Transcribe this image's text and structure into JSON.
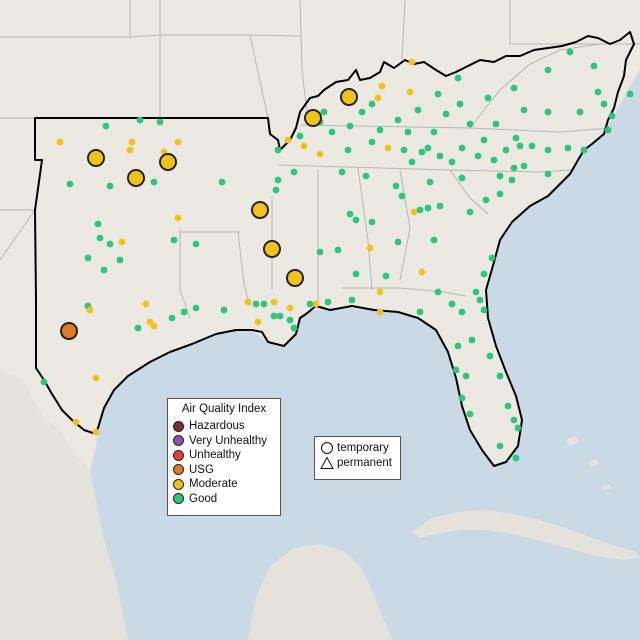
{
  "map": {
    "background_water": "#c9d9e6",
    "background_land": "#ece9e3",
    "state_line": "#b7b7b7",
    "region_outline": "#000000",
    "marker_outline": "#222222"
  },
  "legend": {
    "title": "Air Quality Index",
    "items": [
      {
        "label": "Hazardous",
        "color": "#7b2c2c"
      },
      {
        "label": "Very Unhealthy",
        "color": "#8e4fb0"
      },
      {
        "label": "Unhealthy",
        "color": "#e0452f"
      },
      {
        "label": "USG",
        "color": "#e07a25"
      },
      {
        "label": "Moderate",
        "color": "#f2c21c"
      },
      {
        "label": "Good",
        "color": "#2ec67a"
      }
    ]
  },
  "monitor_types": {
    "items": [
      {
        "label": "temporary",
        "shape": "circle"
      },
      {
        "label": "permanent",
        "shape": "triangle"
      }
    ]
  }
}
